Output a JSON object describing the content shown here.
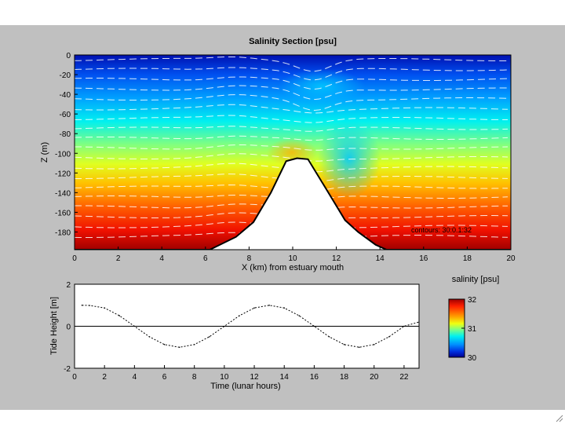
{
  "chart_data": [
    {
      "type": "heatmap",
      "title": "Salinity Section [psu]",
      "xlabel": "X (km) from estuary mouth",
      "ylabel": "Z (m)",
      "xlim": [
        0,
        20
      ],
      "ylim": [
        -198,
        0
      ],
      "xticks": [
        "0",
        "2",
        "4",
        "6",
        "8",
        "10",
        "12",
        "14",
        "16",
        "18",
        "20"
      ],
      "yticks": [
        "0",
        "-20",
        "-40",
        "-60",
        "-80",
        "-100",
        "-120",
        "-140",
        "-160",
        "-180"
      ],
      "annotation": "contours: 30:0.1:32",
      "colorbar": {
        "label": "salinity [psu]",
        "range": [
          30,
          32
        ],
        "ticks": [
          "32",
          "31",
          "30"
        ]
      },
      "bathymetry": {
        "x": [
          0,
          6.2,
          7.4,
          8.2,
          9.0,
          9.7,
          10.2,
          10.7,
          11.5,
          12.4,
          13.0,
          13.8,
          14.3,
          20
        ],
        "z": [
          -198,
          -198,
          -185,
          -170,
          -140,
          -108,
          -105,
          -106,
          -135,
          -168,
          -180,
          -193,
          -198,
          -198
        ]
      }
    },
    {
      "type": "line",
      "xlabel": "Time (lunar hours)",
      "ylabel": "Tide Height [m]",
      "xlim": [
        0,
        23
      ],
      "ylim": [
        -2,
        2
      ],
      "xticks": [
        "0",
        "2",
        "4",
        "6",
        "8",
        "10",
        "12",
        "14",
        "16",
        "18",
        "20",
        "22"
      ],
      "yticks": [
        "2",
        "0",
        "-2"
      ],
      "series": [
        {
          "x": [
            0.5,
            1,
            2,
            3,
            4,
            5,
            6,
            7,
            8,
            9,
            10,
            11,
            12,
            13,
            14,
            15,
            16,
            17,
            18,
            19,
            20,
            21,
            22,
            23
          ],
          "y": [
            1.0,
            0.99,
            0.87,
            0.5,
            0.0,
            -0.5,
            -0.87,
            -1.0,
            -0.87,
            -0.5,
            0.0,
            0.5,
            0.87,
            1.0,
            0.87,
            0.5,
            0.0,
            -0.5,
            -0.87,
            -1.0,
            -0.87,
            -0.5,
            0.0,
            0.2
          ]
        }
      ]
    }
  ],
  "icons": {
    "resize_grip": "resize-grip-icon"
  }
}
